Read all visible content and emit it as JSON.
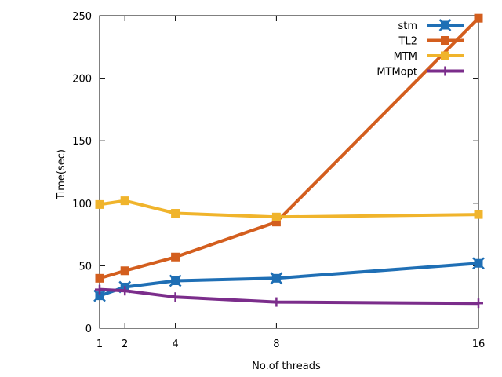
{
  "chart_data": {
    "type": "line",
    "title": "",
    "xlabel": "No.of threads",
    "ylabel": "Time(sec)",
    "xlim": [
      1,
      16
    ],
    "ylim": [
      0,
      250
    ],
    "x_ticks": [
      1,
      2,
      4,
      8,
      16
    ],
    "y_ticks": [
      0,
      50,
      100,
      150,
      200,
      250
    ],
    "x_tick_labels": [
      "1",
      "2",
      "4",
      "8",
      "16"
    ],
    "y_tick_labels": [
      "0",
      "50",
      "100",
      "150",
      "200",
      "250"
    ],
    "grid": false,
    "legend_position": "top-right",
    "x": [
      1,
      2,
      4,
      8,
      16
    ],
    "series": [
      {
        "name": "stm",
        "color": "#1f6fb5",
        "marker": "x-square",
        "values": [
          26,
          33,
          38,
          40,
          52
        ]
      },
      {
        "name": "TL2",
        "color": "#d35e1e",
        "marker": "square",
        "values": [
          40,
          46,
          57,
          85,
          248
        ]
      },
      {
        "name": "MTM",
        "color": "#f0b42c",
        "marker": "square",
        "values": [
          99,
          102,
          92,
          89,
          91
        ]
      },
      {
        "name": "MTMopt",
        "color": "#7b2d8b",
        "marker": "plus",
        "values": [
          31,
          30,
          25,
          21,
          20
        ]
      }
    ]
  }
}
